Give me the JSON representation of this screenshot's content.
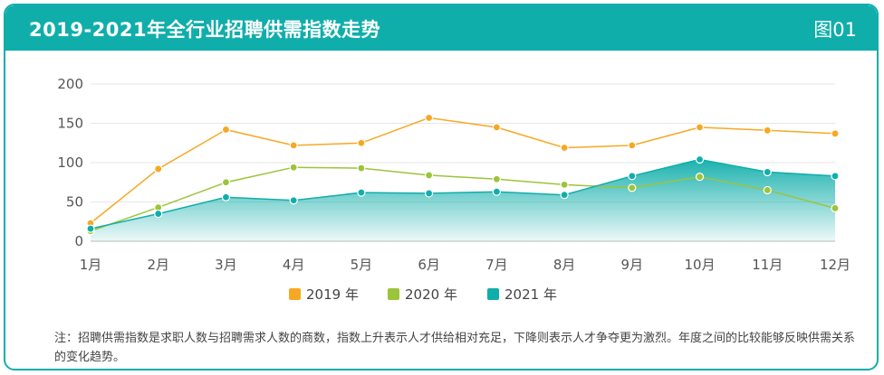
{
  "header": {
    "title": "2019-2021年全行业招聘供需指数走势",
    "figure_label": "图01"
  },
  "note": "注：招聘供需指数是求职人数与招聘需求人数的商数，指数上升表示人才供给相对充足，下降则表示人才争夺更为激烈。年度之间的比较能够反映供需关系的变化趋势。",
  "chart_data": {
    "type": "line",
    "categories": [
      "1月",
      "2月",
      "3月",
      "4月",
      "5月",
      "6月",
      "7月",
      "8月",
      "9月",
      "10月",
      "11月",
      "12月"
    ],
    "ylim": [
      0,
      200
    ],
    "yticks": [
      0,
      50,
      100,
      150,
      200
    ],
    "grid": true,
    "legend_position": "bottom",
    "series": [
      {
        "name": "2019 年",
        "color": "#f7a823",
        "style": "line",
        "values": [
          23,
          92,
          142,
          122,
          125,
          157,
          145,
          119,
          122,
          145,
          141,
          137
        ]
      },
      {
        "name": "2020 年",
        "color": "#9cc43a",
        "style": "line",
        "values": [
          13,
          43,
          75,
          94,
          93,
          84,
          79,
          72,
          68,
          82,
          65,
          42
        ]
      },
      {
        "name": "2021 年",
        "color": "#10aeaa",
        "style": "area",
        "values": [
          16,
          35,
          56,
          52,
          62,
          61,
          63,
          59,
          83,
          104,
          88,
          83
        ]
      }
    ]
  }
}
